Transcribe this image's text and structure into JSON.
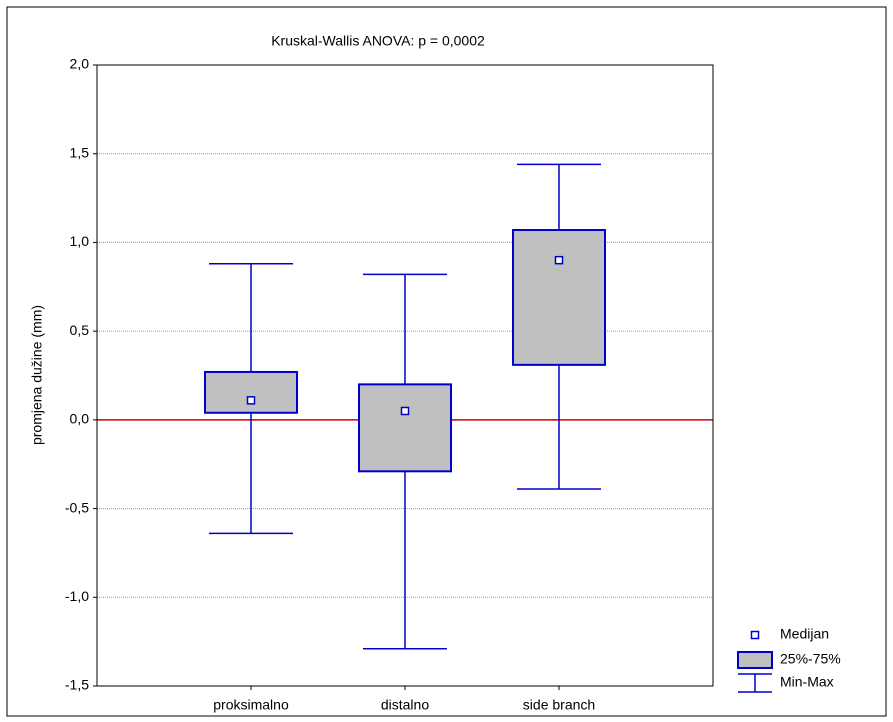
{
  "chart_data": {
    "type": "box",
    "title": "Kruskal-Wallis ANOVA: p = 0,0002",
    "ylabel": "promjena dužine (mm)",
    "categories": [
      "proksimalno",
      "distalno",
      "side branch"
    ],
    "min": [
      -0.64,
      -1.29,
      -0.39
    ],
    "q1": [
      0.04,
      -0.29,
      0.31
    ],
    "median": [
      0.11,
      0.05,
      0.9
    ],
    "q3": [
      0.27,
      0.2,
      1.07
    ],
    "max": [
      0.88,
      0.82,
      1.44
    ],
    "legend": [
      "Medijan",
      "25%-75%",
      "Min-Max"
    ],
    "box_color": "#c0c0c0",
    "line_color": "#0000cc",
    "reference_line": 0,
    "reference_color": "#cc0000",
    "ylim": [
      -1.5,
      2.0
    ],
    "yticks": [
      {
        "value": -1.5,
        "label": "-1,5"
      },
      {
        "value": -1.0,
        "label": "-1,0"
      },
      {
        "value": -0.5,
        "label": "-0,5"
      },
      {
        "value": 0.0,
        "label": "0,0"
      },
      {
        "value": 0.5,
        "label": "0,5"
      },
      {
        "value": 1.0,
        "label": "1,0"
      },
      {
        "value": 1.5,
        "label": "1,5"
      },
      {
        "value": 2.0,
        "label": "2,0"
      }
    ],
    "grid": true
  }
}
